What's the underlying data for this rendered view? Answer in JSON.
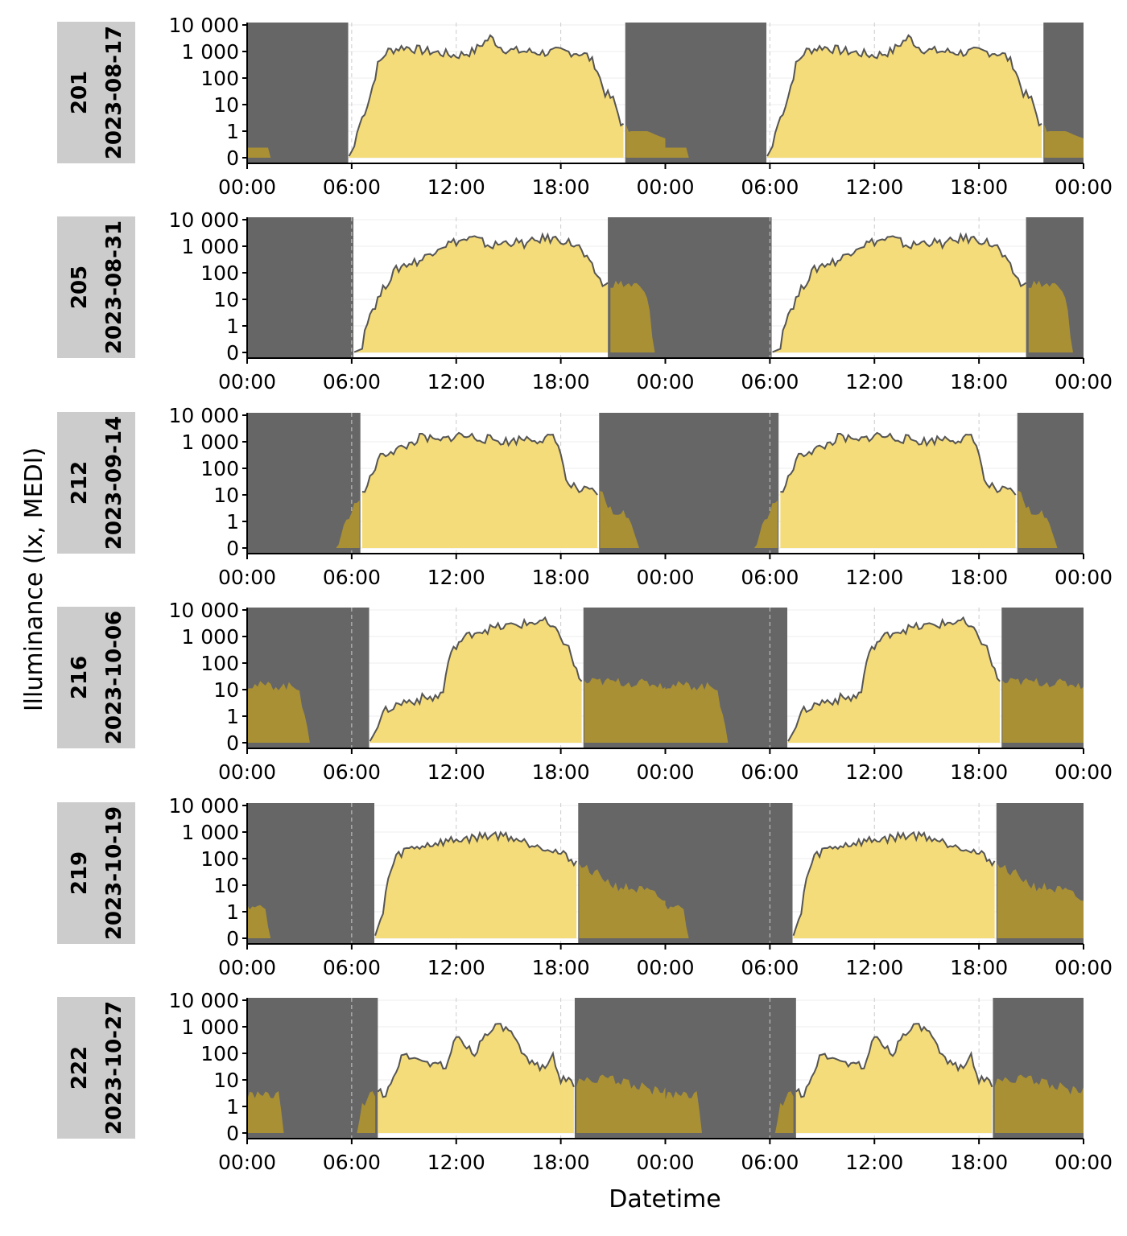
{
  "figure": {
    "ylabel": "Illuminance (lx, MEDI)",
    "xlabel": "Datetime",
    "y_tick_labels": [
      "0",
      "1",
      "10",
      "100",
      "1 000",
      "10 000"
    ],
    "x_tick_labels": [
      "00:00",
      "06:00",
      "12:00",
      "18:00",
      "00:00",
      "06:00",
      "12:00",
      "18:00",
      "00:00"
    ],
    "colors": {
      "night": "#666666",
      "day_fill": "#f5dc7a",
      "night_fill": "#a99035",
      "line": "#555555",
      "strip": "#cccccc",
      "grid": "#cccccc"
    }
  },
  "chart_data": [
    {
      "type": "area",
      "id": "201",
      "date": "2023-08-17",
      "strip_label": "201",
      "strip_date": "2023-08-17",
      "x_unit": "hours since first midnight",
      "xlim": [
        0,
        48
      ],
      "y_scale": "log (value+1)",
      "ylim": [
        0,
        10000
      ],
      "night_before_h": 5.8,
      "night_after_h": 21.7,
      "profile": [
        [
          0,
          0.3
        ],
        [
          1.2,
          0.3
        ],
        [
          1.3,
          0
        ],
        [
          5.8,
          0
        ],
        [
          6.2,
          0.4
        ],
        [
          7,
          15
        ],
        [
          7.5,
          300
        ],
        [
          8,
          1000
        ],
        [
          9,
          1500
        ],
        [
          10,
          1100
        ],
        [
          11,
          900
        ],
        [
          12,
          700
        ],
        [
          13,
          1000
        ],
        [
          13.5,
          2000
        ],
        [
          14,
          3500
        ],
        [
          14.5,
          1500
        ],
        [
          15,
          1100
        ],
        [
          16,
          1000
        ],
        [
          17,
          900
        ],
        [
          18,
          1000
        ],
        [
          19,
          900
        ],
        [
          19.5,
          700
        ],
        [
          20,
          300
        ],
        [
          20.5,
          30
        ],
        [
          21,
          15
        ],
        [
          21.5,
          2
        ],
        [
          22,
          1
        ],
        [
          23,
          1
        ],
        [
          23.5,
          0.8
        ],
        [
          24.6,
          0.5
        ],
        [
          25,
          0.3
        ],
        [
          25.2,
          0
        ]
      ]
    },
    {
      "type": "area",
      "id": "205",
      "date": "2023-08-31",
      "strip_label": "205",
      "strip_date": "2023-08-31",
      "x_unit": "hours since first midnight",
      "xlim": [
        0,
        48
      ],
      "y_scale": "log (value+1)",
      "ylim": [
        0,
        10000
      ],
      "night_before_h": 6.1,
      "night_after_h": 20.7,
      "profile": [
        [
          0,
          0
        ],
        [
          6.1,
          0
        ],
        [
          6.6,
          0.1
        ],
        [
          7,
          3
        ],
        [
          7.5,
          10
        ],
        [
          8,
          40
        ],
        [
          8.5,
          120
        ],
        [
          9,
          200
        ],
        [
          10,
          300
        ],
        [
          11,
          1000
        ],
        [
          12,
          1500
        ],
        [
          13,
          2000
        ],
        [
          14,
          1000
        ],
        [
          15,
          1500
        ],
        [
          16,
          1200
        ],
        [
          17,
          2000
        ],
        [
          18,
          1800
        ],
        [
          19,
          1000
        ],
        [
          19.5,
          300
        ],
        [
          20,
          100
        ],
        [
          20.5,
          30
        ],
        [
          21,
          40
        ],
        [
          22,
          35
        ],
        [
          22.5,
          30
        ],
        [
          23,
          10
        ],
        [
          23.3,
          0
        ]
      ]
    },
    {
      "type": "area",
      "id": "212",
      "date": "2023-09-14",
      "strip_label": "212",
      "strip_date": "2023-09-14",
      "x_unit": "hours since first midnight",
      "xlim": [
        0,
        48
      ],
      "y_scale": "log (value+1)",
      "ylim": [
        0,
        10000
      ],
      "night_before_h": 6.5,
      "night_after_h": 20.2,
      "profile": [
        [
          0,
          0
        ],
        [
          5.2,
          0
        ],
        [
          5.6,
          1
        ],
        [
          6,
          2
        ],
        [
          6.3,
          8
        ],
        [
          6.6,
          10
        ],
        [
          7,
          30
        ],
        [
          7.5,
          200
        ],
        [
          8,
          400
        ],
        [
          9,
          600
        ],
        [
          10,
          1500
        ],
        [
          11,
          1000
        ],
        [
          12,
          1800
        ],
        [
          13,
          1500
        ],
        [
          14,
          1200
        ],
        [
          15,
          1000
        ],
        [
          16,
          1400
        ],
        [
          17,
          1200
        ],
        [
          17.5,
          1500
        ],
        [
          18,
          500
        ],
        [
          18.3,
          30
        ],
        [
          19,
          15
        ],
        [
          20,
          12
        ],
        [
          20.4,
          10
        ],
        [
          21,
          2
        ],
        [
          21.5,
          3
        ],
        [
          22,
          1
        ],
        [
          22.5,
          0
        ]
      ]
    },
    {
      "type": "area",
      "id": "216",
      "date": "2023-10-06",
      "strip_label": "216",
      "strip_date": "2023-10-06",
      "x_unit": "hours since first midnight",
      "xlim": [
        0,
        48
      ],
      "y_scale": "log (value+1)",
      "ylim": [
        0,
        10000
      ],
      "night_before_h": 7.0,
      "night_after_h": 19.3,
      "profile": [
        [
          0,
          15
        ],
        [
          3,
          13
        ],
        [
          3.2,
          2
        ],
        [
          3.6,
          0
        ],
        [
          7,
          0
        ],
        [
          7.5,
          0.5
        ],
        [
          8,
          2
        ],
        [
          9,
          4
        ],
        [
          10,
          5
        ],
        [
          11,
          6
        ],
        [
          11.3,
          10
        ],
        [
          11.5,
          100
        ],
        [
          12,
          500
        ],
        [
          13,
          1500
        ],
        [
          14,
          2000
        ],
        [
          15,
          2500
        ],
        [
          16,
          3000
        ],
        [
          17,
          4000
        ],
        [
          17.5,
          2000
        ],
        [
          18,
          1000
        ],
        [
          18.5,
          300
        ],
        [
          19,
          30
        ],
        [
          19.3,
          18
        ],
        [
          20,
          20
        ],
        [
          21,
          20
        ],
        [
          22,
          18
        ],
        [
          23,
          17
        ],
        [
          24,
          15
        ],
        [
          25,
          15
        ],
        [
          26,
          13
        ],
        [
          27,
          13
        ],
        [
          27.5,
          8
        ],
        [
          28,
          1
        ],
        [
          28.2,
          0
        ]
      ]
    },
    {
      "type": "area",
      "id": "219",
      "date": "2023-10-19",
      "strip_label": "219",
      "strip_date": "2023-10-19",
      "x_unit": "hours since first midnight",
      "xlim": [
        0,
        48
      ],
      "y_scale": "log (value+1)",
      "ylim": [
        0,
        10000
      ],
      "night_before_h": 7.3,
      "night_after_h": 19.0,
      "profile": [
        [
          0,
          2
        ],
        [
          1,
          1.5
        ],
        [
          1.3,
          0
        ],
        [
          7.3,
          0
        ],
        [
          7.8,
          1
        ],
        [
          8,
          10
        ],
        [
          8.5,
          100
        ],
        [
          9,
          200
        ],
        [
          10,
          300
        ],
        [
          11,
          400
        ],
        [
          12,
          500
        ],
        [
          13,
          600
        ],
        [
          14,
          800
        ],
        [
          15,
          700
        ],
        [
          16,
          400
        ],
        [
          17,
          300
        ],
        [
          18,
          150
        ],
        [
          18.8,
          80
        ],
        [
          19,
          60
        ],
        [
          20,
          30
        ],
        [
          21,
          10
        ],
        [
          22,
          8
        ],
        [
          23,
          6
        ],
        [
          24,
          3
        ],
        [
          25,
          2
        ],
        [
          25.3,
          0
        ]
      ]
    },
    {
      "type": "area",
      "id": "222",
      "date": "2023-10-27",
      "strip_label": "222",
      "strip_date": "2023-10-27",
      "x_unit": "hours since first midnight",
      "xlim": [
        0,
        48
      ],
      "y_scale": "log (value+1)",
      "ylim": [
        0,
        10000
      ],
      "night_before_h": 7.5,
      "night_after_h": 18.8,
      "profile": [
        [
          0,
          3
        ],
        [
          1.9,
          3
        ],
        [
          2,
          0
        ],
        [
          6.3,
          0
        ],
        [
          6.6,
          1
        ],
        [
          7,
          3
        ],
        [
          8,
          4
        ],
        [
          8.5,
          20
        ],
        [
          9,
          100
        ],
        [
          10,
          50
        ],
        [
          11,
          40
        ],
        [
          11.5,
          30
        ],
        [
          12,
          500
        ],
        [
          13,
          100
        ],
        [
          14,
          1000
        ],
        [
          15,
          800
        ],
        [
          16,
          50
        ],
        [
          17,
          30
        ],
        [
          17.5,
          100
        ],
        [
          18,
          10
        ],
        [
          18.8,
          8
        ],
        [
          19.5,
          10
        ],
        [
          20,
          12
        ],
        [
          21,
          10
        ],
        [
          22,
          8
        ],
        [
          23,
          5
        ],
        [
          24,
          4
        ],
        [
          25,
          3
        ],
        [
          26,
          2
        ],
        [
          26.3,
          0
        ]
      ]
    }
  ]
}
